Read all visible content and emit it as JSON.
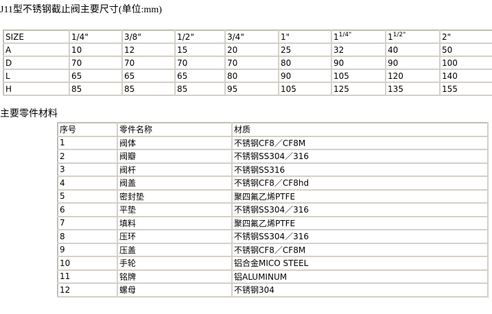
{
  "title": "J11型不锈钢截止阀主要尺寸(单位:mm)",
  "dimensions": {
    "headers": [
      "SIZE",
      "1/4\"",
      "3/8\"",
      "1/2\"",
      "3/4\"",
      "1\"",
      "1",
      "1",
      "2\""
    ],
    "header_sup": {
      "6": "1/4\"",
      "7": "1/2\""
    },
    "rows": [
      [
        "A",
        "10",
        "12",
        "15",
        "20",
        "25",
        "32",
        "40",
        "50"
      ],
      [
        "D",
        "70",
        "70",
        "70",
        "70",
        "80",
        "90",
        "90",
        "100"
      ],
      [
        "L",
        "65",
        "65",
        "65",
        "80",
        "90",
        "105",
        "120",
        "140"
      ],
      [
        "H",
        "85",
        "85",
        "85",
        "95",
        "105",
        "125",
        "135",
        "155"
      ]
    ]
  },
  "parts_title": "主要零件材料",
  "parts": {
    "headers": [
      "序号",
      "零件名称",
      "材质"
    ],
    "rows": [
      [
        "1",
        "阀体",
        "不锈钢CF8／CF8M"
      ],
      [
        "2",
        "阀瓣",
        "不锈钢SS304／316"
      ],
      [
        "3",
        "阀杆",
        "不锈钢SS316"
      ],
      [
        "4",
        "阀盖",
        "不锈钢CF8／CF8hd"
      ],
      [
        "5",
        "密封垫",
        "聚四氟乙烯PTFE"
      ],
      [
        "6",
        "平垫",
        "不锈钢SS304／316"
      ],
      [
        "7",
        "填料",
        "聚四氟乙烯PTFE"
      ],
      [
        "8",
        "压环",
        "不锈钢SS304／316"
      ],
      [
        "9",
        "压盖",
        "不锈钢CF8／CF8M"
      ],
      [
        "10",
        "手轮",
        "铝合金MICO STEEL"
      ],
      [
        "11",
        "铭牌",
        "铝ALUMINUM"
      ],
      [
        "12",
        "螺母",
        "不锈钢304"
      ]
    ]
  }
}
